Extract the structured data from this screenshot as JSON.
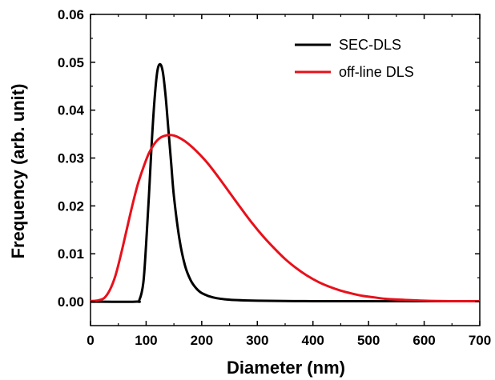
{
  "chart_data": {
    "type": "line",
    "xlabel": "Diameter (nm)",
    "ylabel": "Frequency (arb. unit)",
    "xlim": [
      0,
      700
    ],
    "ylim": [
      -0.005,
      0.06
    ],
    "x_ticks": [
      0,
      100,
      200,
      300,
      400,
      500,
      600,
      700
    ],
    "y_ticks": [
      0.0,
      0.01,
      0.02,
      0.03,
      0.04,
      0.05,
      0.06
    ],
    "y_tick_labels": [
      "0.00",
      "0.01",
      "0.02",
      "0.03",
      "0.04",
      "0.05",
      "0.06"
    ],
    "grid": false,
    "legend_position": "top-right",
    "series": [
      {
        "name": "SEC-DLS",
        "color": "#000000",
        "points": [
          [
            0,
            0
          ],
          [
            80,
            0
          ],
          [
            88,
            0.0004
          ],
          [
            95,
            0.004
          ],
          [
            100,
            0.012
          ],
          [
            105,
            0.022
          ],
          [
            110,
            0.033
          ],
          [
            115,
            0.042
          ],
          [
            120,
            0.048
          ],
          [
            125,
            0.0496
          ],
          [
            130,
            0.048
          ],
          [
            135,
            0.043
          ],
          [
            140,
            0.036
          ],
          [
            145,
            0.029
          ],
          [
            150,
            0.022
          ],
          [
            160,
            0.013
          ],
          [
            170,
            0.0075
          ],
          [
            180,
            0.0045
          ],
          [
            190,
            0.0028
          ],
          [
            200,
            0.0018
          ],
          [
            220,
            0.0009
          ],
          [
            250,
            0.0004
          ],
          [
            300,
            0.0002
          ],
          [
            400,
            0.0001
          ],
          [
            500,
            0.0001
          ],
          [
            600,
            0.0001
          ],
          [
            700,
            0.0001
          ]
        ]
      },
      {
        "name": "off-line DLS",
        "color": "#e8101a",
        "points": [
          [
            0,
            0.0001
          ],
          [
            15,
            0.0003
          ],
          [
            25,
            0.0008
          ],
          [
            35,
            0.0025
          ],
          [
            45,
            0.0055
          ],
          [
            55,
            0.01
          ],
          [
            65,
            0.015
          ],
          [
            75,
            0.02
          ],
          [
            85,
            0.0245
          ],
          [
            95,
            0.028
          ],
          [
            105,
            0.031
          ],
          [
            115,
            0.033
          ],
          [
            125,
            0.0342
          ],
          [
            135,
            0.0347
          ],
          [
            145,
            0.0348
          ],
          [
            155,
            0.0345
          ],
          [
            170,
            0.0335
          ],
          [
            190,
            0.0315
          ],
          [
            210,
            0.029
          ],
          [
            230,
            0.026
          ],
          [
            250,
            0.0228
          ],
          [
            270,
            0.0196
          ],
          [
            290,
            0.0165
          ],
          [
            310,
            0.0137
          ],
          [
            330,
            0.0112
          ],
          [
            350,
            0.0089
          ],
          [
            370,
            0.007
          ],
          [
            390,
            0.0054
          ],
          [
            410,
            0.0041
          ],
          [
            430,
            0.0031
          ],
          [
            450,
            0.0023
          ],
          [
            470,
            0.0017
          ],
          [
            490,
            0.0012
          ],
          [
            510,
            0.0009
          ],
          [
            530,
            0.0006
          ],
          [
            560,
            0.0004
          ],
          [
            600,
            0.0002
          ],
          [
            650,
            0.0001
          ],
          [
            700,
            0.0001
          ]
        ]
      }
    ]
  }
}
